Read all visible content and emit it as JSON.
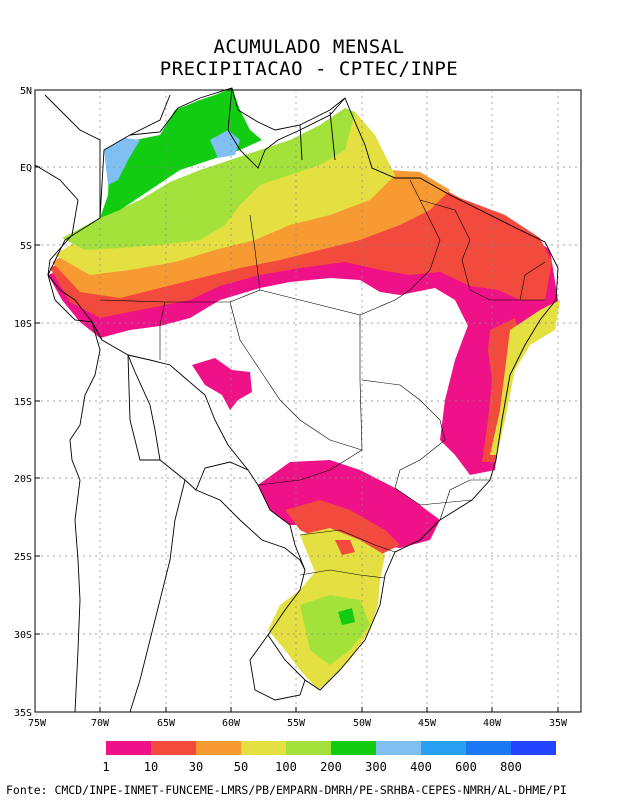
{
  "title": {
    "line1": "ACUMULADO MENSAL",
    "line2": "PRECIPITACAO - CPTEC/INPE"
  },
  "axes": {
    "lat_labels": [
      "5N",
      "EQ",
      "5S",
      "10S",
      "15S",
      "20S",
      "25S",
      "30S",
      "35S"
    ],
    "lon_labels": [
      "75W",
      "70W",
      "65W",
      "60W",
      "55W",
      "50W",
      "45W",
      "40W",
      "35W"
    ],
    "lat_range": [
      5,
      -35
    ],
    "lon_range": [
      -75,
      -35
    ],
    "grid": true
  },
  "legend": {
    "colors": [
      "#ee1188",
      "#f24a3c",
      "#f89a32",
      "#e4e042",
      "#a3e23a",
      "#11cc11",
      "#7fbff2",
      "#2ba0f2",
      "#1a79f2",
      "#2244ff"
    ],
    "labels": [
      "1",
      "10",
      "30",
      "50",
      "100",
      "200",
      "300",
      "400",
      "600",
      "800"
    ]
  },
  "colors": {
    "land": "#ffffff",
    "grid": "#777777"
  },
  "source": "Fonte: CMCD/INPE-INMET-FUNCEME-LMRS/PB/EMPARN-DMRH/PE-SRHBA-CEPES-NMRH/AL-DHME/PI"
}
